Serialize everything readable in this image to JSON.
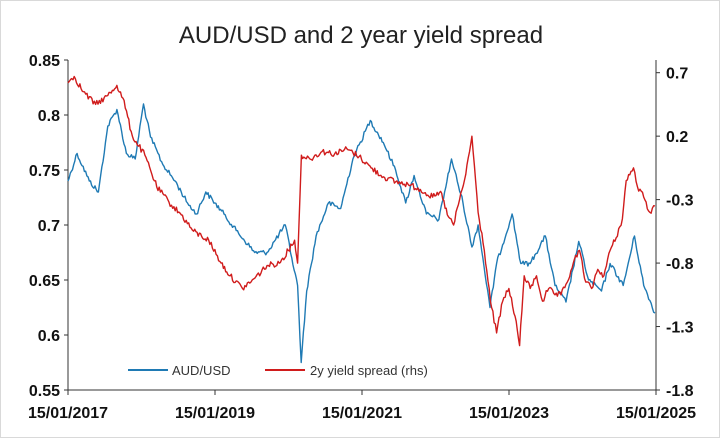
{
  "chart_data": {
    "type": "line",
    "title": "AUD/USD and 2 year yield spread",
    "xlabel": "",
    "ylabel": "",
    "x_ticks": [
      "15/01/2017",
      "15/01/2019",
      "15/01/2021",
      "15/01/2023",
      "15/01/2025"
    ],
    "xlim": [
      "2017-01-15",
      "2025-01-15"
    ],
    "y_left": {
      "ylim": [
        0.55,
        0.85
      ],
      "ticks": [
        "0.85",
        "0.8",
        "0.75",
        "0.7",
        "0.65",
        "0.6",
        "0.55"
      ]
    },
    "y_right": {
      "ylim": [
        -1.8,
        0.8
      ],
      "ticks": [
        "0.7",
        "0.2",
        "-0.3",
        "-0.8",
        "-1.3",
        "-1.8"
      ]
    },
    "legend_position": "bottom-inside",
    "grid": false,
    "series": [
      {
        "name": "AUD/USD",
        "axis": "left",
        "color": "#1f7ab4",
        "points": [
          [
            "2017-01-15",
            0.74
          ],
          [
            "2017-03-01",
            0.765
          ],
          [
            "2017-05-01",
            0.74
          ],
          [
            "2017-06-15",
            0.73
          ],
          [
            "2017-08-01",
            0.79
          ],
          [
            "2017-09-15",
            0.805
          ],
          [
            "2017-11-01",
            0.765
          ],
          [
            "2017-12-15",
            0.76
          ],
          [
            "2018-01-25",
            0.81
          ],
          [
            "2018-03-01",
            0.78
          ],
          [
            "2018-05-01",
            0.755
          ],
          [
            "2018-07-01",
            0.74
          ],
          [
            "2018-09-01",
            0.72
          ],
          [
            "2018-10-15",
            0.71
          ],
          [
            "2018-12-01",
            0.73
          ],
          [
            "2019-01-15",
            0.72
          ],
          [
            "2019-03-01",
            0.71
          ],
          [
            "2019-05-01",
            0.695
          ],
          [
            "2019-08-01",
            0.675
          ],
          [
            "2019-10-01",
            0.675
          ],
          [
            "2019-12-31",
            0.7
          ],
          [
            "2020-02-01",
            0.67
          ],
          [
            "2020-03-01",
            0.645
          ],
          [
            "2020-03-19",
            0.575
          ],
          [
            "2020-04-15",
            0.64
          ],
          [
            "2020-06-01",
            0.69
          ],
          [
            "2020-08-01",
            0.72
          ],
          [
            "2020-10-01",
            0.715
          ],
          [
            "2020-12-01",
            0.76
          ],
          [
            "2021-02-25",
            0.795
          ],
          [
            "2021-05-01",
            0.775
          ],
          [
            "2021-07-01",
            0.75
          ],
          [
            "2021-08-20",
            0.72
          ],
          [
            "2021-10-01",
            0.745
          ],
          [
            "2021-12-01",
            0.71
          ],
          [
            "2022-02-01",
            0.705
          ],
          [
            "2022-04-05",
            0.76
          ],
          [
            "2022-06-01",
            0.72
          ],
          [
            "2022-07-15",
            0.68
          ],
          [
            "2022-08-15",
            0.7
          ],
          [
            "2022-10-13",
            0.625
          ],
          [
            "2022-11-15",
            0.665
          ],
          [
            "2023-01-31",
            0.71
          ],
          [
            "2023-03-15",
            0.665
          ],
          [
            "2023-05-01",
            0.665
          ],
          [
            "2023-07-15",
            0.69
          ],
          [
            "2023-09-01",
            0.645
          ],
          [
            "2023-10-26",
            0.63
          ],
          [
            "2023-12-28",
            0.685
          ],
          [
            "2024-02-15",
            0.65
          ],
          [
            "2024-04-19",
            0.64
          ],
          [
            "2024-06-01",
            0.665
          ],
          [
            "2024-08-05",
            0.645
          ],
          [
            "2024-09-30",
            0.69
          ],
          [
            "2024-11-15",
            0.645
          ],
          [
            "2025-01-10",
            0.62
          ]
        ]
      },
      {
        "name": "2y yield spread (rhs)",
        "axis": "right",
        "color": "#d01c1c",
        "points": [
          [
            "2017-01-15",
            0.62
          ],
          [
            "2017-02-15",
            0.67
          ],
          [
            "2017-04-01",
            0.55
          ],
          [
            "2017-06-01",
            0.45
          ],
          [
            "2017-08-01",
            0.52
          ],
          [
            "2017-09-15",
            0.6
          ],
          [
            "2017-10-15",
            0.5
          ],
          [
            "2017-12-01",
            0.2
          ],
          [
            "2018-02-01",
            0.05
          ],
          [
            "2018-04-01",
            -0.2
          ],
          [
            "2018-06-01",
            -0.32
          ],
          [
            "2018-08-01",
            -0.42
          ],
          [
            "2018-10-01",
            -0.55
          ],
          [
            "2018-12-15",
            -0.62
          ],
          [
            "2019-02-15",
            -0.8
          ],
          [
            "2019-04-01",
            -0.9
          ],
          [
            "2019-06-01",
            -1.0
          ],
          [
            "2019-08-01",
            -0.92
          ],
          [
            "2019-10-01",
            -0.82
          ],
          [
            "2019-12-01",
            -0.8
          ],
          [
            "2020-01-15",
            -0.7
          ],
          [
            "2020-02-15",
            -0.62
          ],
          [
            "2020-03-01",
            -0.8
          ],
          [
            "2020-03-20",
            0.05
          ],
          [
            "2020-05-01",
            0.02
          ],
          [
            "2020-07-01",
            0.08
          ],
          [
            "2020-09-01",
            0.06
          ],
          [
            "2020-11-01",
            0.1
          ],
          [
            "2021-01-01",
            0.04
          ],
          [
            "2021-03-01",
            -0.05
          ],
          [
            "2021-05-01",
            -0.12
          ],
          [
            "2021-07-01",
            -0.16
          ],
          [
            "2021-09-01",
            -0.18
          ],
          [
            "2021-11-01",
            -0.22
          ],
          [
            "2022-01-01",
            -0.28
          ],
          [
            "2022-02-15",
            -0.25
          ],
          [
            "2022-03-15",
            -0.42
          ],
          [
            "2022-04-15",
            -0.5
          ],
          [
            "2022-05-15",
            -0.3
          ],
          [
            "2022-06-15",
            -0.1
          ],
          [
            "2022-07-15",
            0.2
          ],
          [
            "2022-08-15",
            -0.4
          ],
          [
            "2022-09-15",
            -0.7
          ],
          [
            "2022-10-15",
            -1.1
          ],
          [
            "2022-11-15",
            -1.35
          ],
          [
            "2022-12-15",
            -1.1
          ],
          [
            "2023-01-15",
            -1.0
          ],
          [
            "2023-02-15",
            -1.22
          ],
          [
            "2023-03-09",
            -1.45
          ],
          [
            "2023-04-01",
            -0.9
          ],
          [
            "2023-05-01",
            -1.0
          ],
          [
            "2023-06-01",
            -0.9
          ],
          [
            "2023-07-01",
            -1.1
          ],
          [
            "2023-08-01",
            -1.0
          ],
          [
            "2023-09-01",
            -1.05
          ],
          [
            "2023-10-01",
            -1.05
          ],
          [
            "2023-11-01",
            -0.95
          ],
          [
            "2023-12-01",
            -0.8
          ],
          [
            "2024-01-01",
            -0.7
          ],
          [
            "2024-02-01",
            -0.95
          ],
          [
            "2024-03-01",
            -1.0
          ],
          [
            "2024-04-01",
            -0.85
          ],
          [
            "2024-05-01",
            -0.9
          ],
          [
            "2024-06-01",
            -0.7
          ],
          [
            "2024-07-01",
            -0.6
          ],
          [
            "2024-08-01",
            -0.45
          ],
          [
            "2024-08-20",
            -0.15
          ],
          [
            "2024-09-25",
            -0.05
          ],
          [
            "2024-10-15",
            -0.2
          ],
          [
            "2024-11-15",
            -0.28
          ],
          [
            "2024-12-15",
            -0.4
          ],
          [
            "2025-01-10",
            -0.35
          ]
        ]
      }
    ]
  }
}
